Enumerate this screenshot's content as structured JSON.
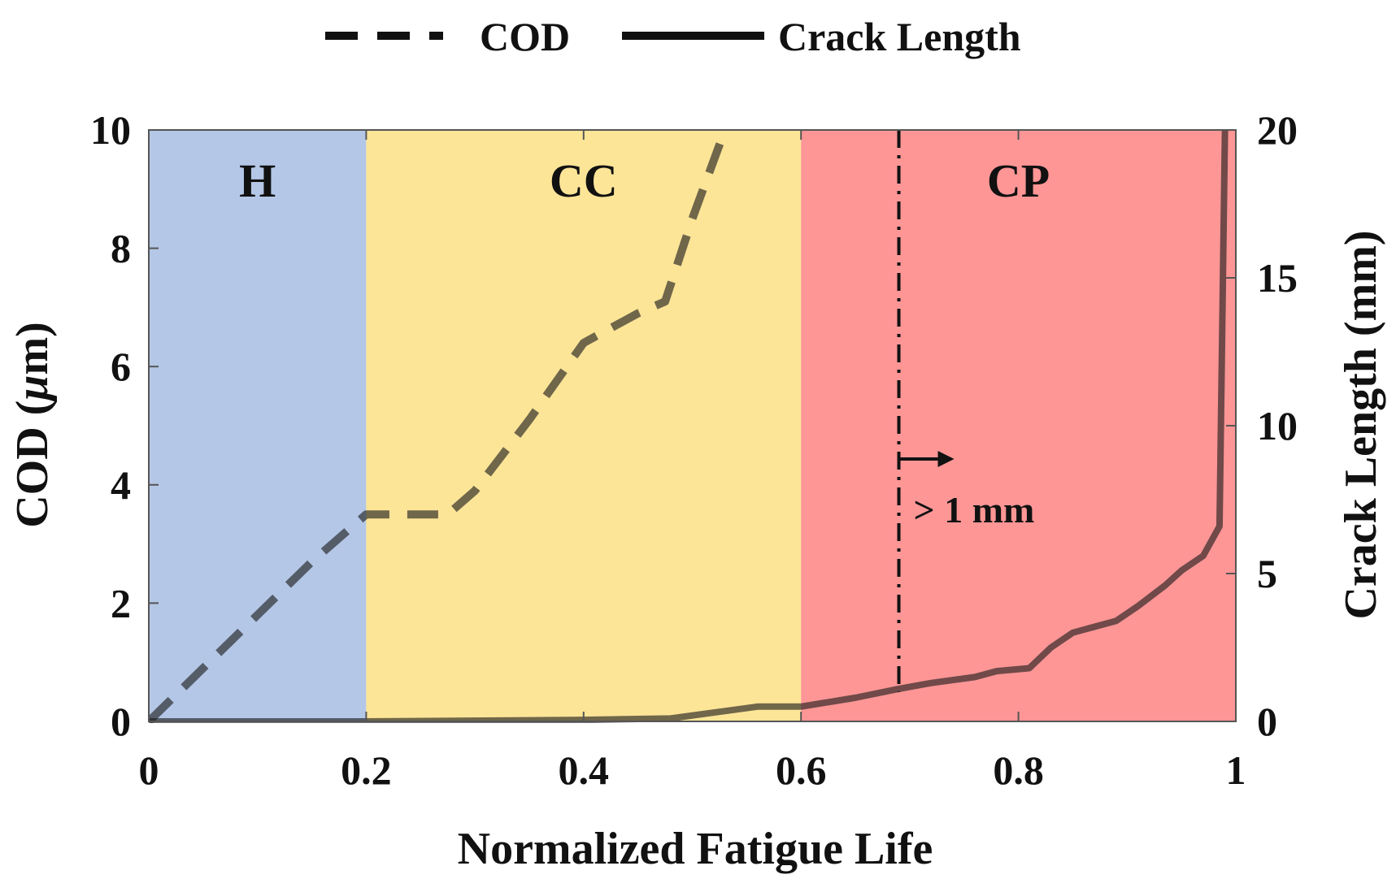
{
  "chart_data": {
    "type": "line",
    "xlabel": "Normalized Fatigue Life",
    "ylabel_left_text": "COD (",
    "ylabel_left_mu": "μ",
    "ylabel_left_unit": "m)",
    "ylabel_right": "Crack Length (mm)",
    "xlim": [
      0,
      1
    ],
    "ylim_left": [
      0,
      10
    ],
    "ylim_right": [
      0,
      20
    ],
    "xticks": [
      0,
      0.2,
      0.4,
      0.6,
      0.8,
      1
    ],
    "xtick_labels": [
      "0",
      "0.2",
      "0.4",
      "0.6",
      "0.8",
      "1"
    ],
    "yticks_left": [
      0,
      2,
      4,
      6,
      8,
      10
    ],
    "ytick_labels_left": [
      "0",
      "2",
      "4",
      "6",
      "8",
      "10"
    ],
    "yticks_right": [
      0,
      5,
      10,
      15,
      20
    ],
    "ytick_labels_right": [
      "0",
      "5",
      "10",
      "15",
      "20"
    ],
    "legend": [
      {
        "name": "COD",
        "style": "dashed"
      },
      {
        "name": "Crack Length",
        "style": "solid"
      }
    ],
    "regions": [
      {
        "label": "H",
        "x0": 0,
        "x1": 0.2,
        "color": "#b4c7e7"
      },
      {
        "label": "CC",
        "x0": 0.2,
        "x1": 0.6,
        "color": "#fde598"
      },
      {
        "label": "CP",
        "x0": 0.6,
        "x1": 1.0,
        "color": "#fe9696"
      }
    ],
    "series": [
      {
        "name": "COD",
        "axis": "left",
        "style": "dashed",
        "x": [
          0,
          0.05,
          0.1,
          0.15,
          0.2,
          0.2,
          0.25,
          0.275,
          0.3,
          0.35,
          0.4,
          0.45,
          0.475,
          0.5,
          0.53
        ],
        "y": [
          0,
          0.9,
          1.8,
          2.7,
          3.5,
          3.5,
          3.5,
          3.5,
          3.9,
          5.1,
          6.4,
          6.9,
          7.1,
          8.5,
          10
        ]
      },
      {
        "name": "Crack Length",
        "axis": "right",
        "style": "solid",
        "x": [
          0,
          0.2,
          0.4,
          0.48,
          0.52,
          0.56,
          0.6,
          0.65,
          0.69,
          0.72,
          0.76,
          0.78,
          0.81,
          0.83,
          0.85,
          0.87,
          0.89,
          0.91,
          0.935,
          0.95,
          0.97,
          0.985,
          0.99
        ],
        "y": [
          0,
          0,
          0.05,
          0.1,
          0.3,
          0.5,
          0.5,
          0.8,
          1.1,
          1.3,
          1.5,
          1.7,
          1.8,
          2.5,
          3.0,
          3.2,
          3.4,
          3.9,
          4.6,
          5.1,
          5.6,
          6.6,
          20
        ]
      }
    ],
    "vline": {
      "x": 0.69,
      "style": "dashdot"
    },
    "annotation": {
      "text": "> 1 mm",
      "arrow": "right"
    }
  }
}
